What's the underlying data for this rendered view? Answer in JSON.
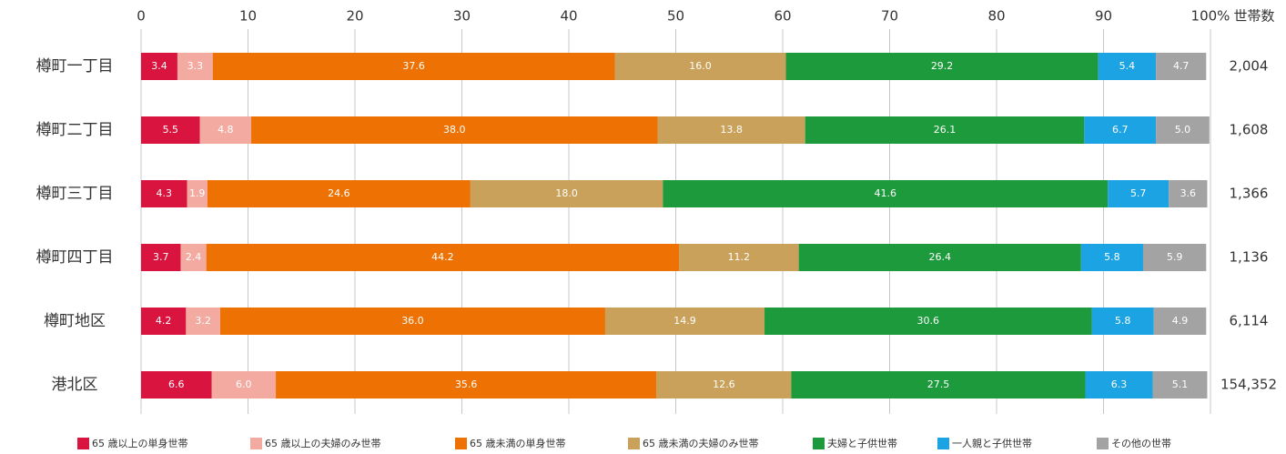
{
  "chart_data": {
    "type": "stacked_barh",
    "categories": [
      "樽町一丁目",
      "樽町二丁目",
      "樽町三丁目",
      "樽町四丁目",
      "樽町地区",
      "港北区"
    ],
    "series": [
      {
        "name": "65 歳以上の単身世帯",
        "color": "#d9143f",
        "values": [
          3.4,
          5.5,
          4.3,
          3.7,
          4.2,
          6.6
        ],
        "value_labels": [
          "3.4",
          "5.5",
          "4.3",
          "3.7",
          "4.2",
          "6.6"
        ]
      },
      {
        "name": "65 歳以上の夫婦のみ世帯",
        "color": "#f3aaa0",
        "values": [
          3.3,
          4.8,
          1.9,
          2.4,
          3.2,
          6.0
        ],
        "value_labels": [
          "3.3",
          "4.8",
          "1.9",
          "2.4",
          "3.2",
          "6.0"
        ]
      },
      {
        "name": "65 歳未満の単身世帯",
        "color": "#ee7203",
        "values": [
          37.6,
          38.0,
          24.6,
          44.2,
          36.0,
          35.6
        ],
        "value_labels": [
          "37.6",
          "38.0",
          "24.6",
          "44.2",
          "36.0",
          "35.6"
        ]
      },
      {
        "name": "65 歳未満の夫婦のみ世帯",
        "color": "#c9a15a",
        "values": [
          16.0,
          13.8,
          18.0,
          11.2,
          14.9,
          12.6
        ],
        "value_labels": [
          "16.0",
          "13.8",
          "18.0",
          "11.2",
          "14.9",
          "12.6"
        ]
      },
      {
        "name": "夫婦と子供世帯",
        "color": "#1c9a3c",
        "values": [
          29.2,
          26.1,
          41.6,
          26.4,
          30.6,
          27.5
        ],
        "value_labels": [
          "29.2",
          "26.1",
          "41.6",
          "26.4",
          "30.6",
          "27.5"
        ]
      },
      {
        "name": "一人親と子供世帯",
        "color": "#1ca3e3",
        "values": [
          5.4,
          6.7,
          5.7,
          5.8,
          5.8,
          6.3
        ],
        "value_labels": [
          "5.4",
          "6.7",
          "5.7",
          "5.8",
          "5.8",
          "6.3"
        ]
      },
      {
        "name": "その他の世帯",
        "color": "#a3a3a3",
        "values": [
          4.7,
          5.0,
          3.6,
          5.9,
          4.9,
          5.1
        ],
        "value_labels": [
          "4.7",
          "5.0",
          "3.6",
          "5.9",
          "4.9",
          "5.1"
        ]
      }
    ],
    "xlim": [
      0,
      100
    ],
    "xticks": [
      0,
      10,
      20,
      30,
      40,
      50,
      60,
      70,
      80,
      90,
      {
        "value": 100,
        "label": "100%"
      }
    ],
    "grid": true,
    "households_label": "世帯数",
    "households": [
      "2,004",
      "1,608",
      "1,366",
      "1,136",
      "6,114",
      "154,352"
    ],
    "legend": "bottom"
  }
}
